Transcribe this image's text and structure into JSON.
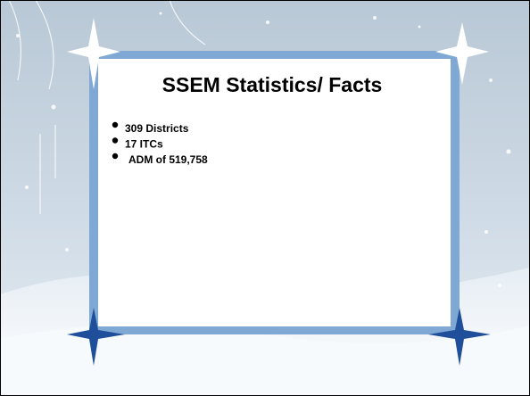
{
  "slide": {
    "title": "SSEM Statistics/ Facts",
    "bullets": [
      "309 Districts",
      "17 ITCs",
      "ADM of 519,758"
    ]
  }
}
